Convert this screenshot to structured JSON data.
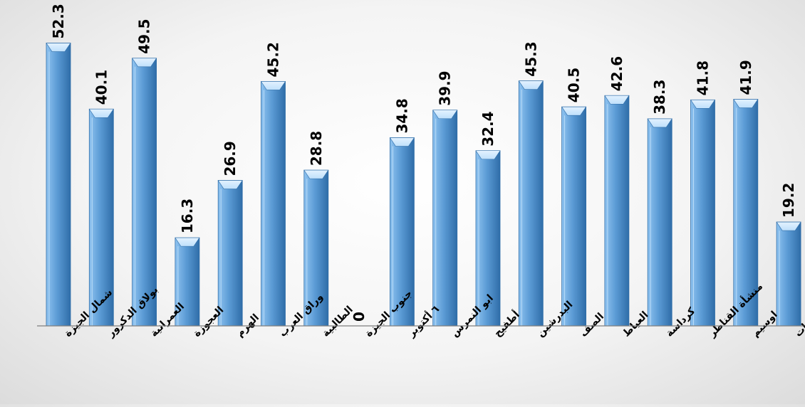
{
  "chart_data": {
    "type": "bar",
    "categories": [
      "شمال الجيزة",
      "بولاق الدكرور",
      "العمرانية",
      "العجوزة",
      "الهرم",
      "وراق العرب",
      "الطالبية",
      "جنوب الجيزة",
      "٦ أكتوبر",
      "ابو النمرس",
      "أطفيح",
      "البدرشين",
      "الصف",
      "العياط",
      "كرداسة",
      "منشأة القناطر",
      "اوسيم",
      "الواحات"
    ],
    "values": [
      52.3,
      40.1,
      49.5,
      16.3,
      26.9,
      45.2,
      28.8,
      0,
      34.8,
      39.9,
      32.4,
      45.3,
      40.5,
      42.6,
      38.3,
      41.8,
      41.9,
      19.2
    ],
    "value_labels": [
      "52.3",
      "40.1",
      "49.5",
      "16.3",
      "26.9",
      "45.2",
      "28.8",
      "0",
      "34.8",
      "39.9",
      "32.4",
      "45.3",
      "40.5",
      "42.6",
      "38.3",
      "41.8",
      "41.9",
      "19.2"
    ],
    "title": "",
    "xlabel": "",
    "ylabel": "",
    "ylim": [
      0,
      55
    ],
    "grid": false,
    "legend": "none",
    "colors": {
      "bar_light": "#8fc3f0",
      "bar_mid": "#5b9bd5",
      "bar_dark": "#2f6da8",
      "bar_top": "#bfe0fb",
      "axis": "#7f7f7f",
      "text": "#000000"
    }
  }
}
